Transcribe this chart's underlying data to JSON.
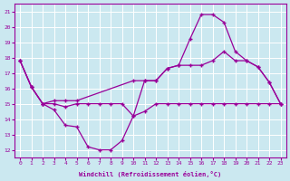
{
  "xlabel": "Windchill (Refroidissement éolien,°C)",
  "bg_color": "#cbe8f0",
  "line_color": "#990099",
  "grid_color": "#ffffff",
  "xlim": [
    -0.5,
    23.5
  ],
  "ylim": [
    11.5,
    21.5
  ],
  "yticks": [
    12,
    13,
    14,
    15,
    16,
    17,
    18,
    19,
    20,
    21
  ],
  "xticks": [
    0,
    1,
    2,
    3,
    4,
    5,
    6,
    7,
    8,
    9,
    10,
    11,
    12,
    13,
    14,
    15,
    16,
    17,
    18,
    19,
    20,
    21,
    22,
    23
  ],
  "line1_x": [
    0,
    1,
    2,
    3,
    4,
    5,
    6,
    7,
    8,
    9,
    10,
    11,
    12,
    13,
    14,
    15,
    16,
    17,
    18,
    19,
    20,
    21,
    22,
    23
  ],
  "line1_y": [
    17.8,
    16.1,
    15.0,
    14.6,
    13.6,
    13.5,
    12.2,
    12.0,
    12.0,
    12.6,
    14.2,
    16.5,
    16.5,
    17.3,
    17.5,
    19.2,
    20.8,
    20.8,
    20.3,
    18.4,
    17.8,
    17.4,
    16.4,
    15.0
  ],
  "line2_x": [
    0,
    1,
    2,
    3,
    4,
    5,
    6,
    7,
    8,
    9,
    10,
    11,
    12,
    13,
    14,
    15,
    16,
    17,
    18,
    19,
    20,
    21,
    22,
    23
  ],
  "line2_y": [
    17.8,
    16.1,
    15.0,
    15.0,
    14.8,
    15.0,
    15.0,
    15.0,
    15.0,
    15.0,
    14.2,
    14.5,
    15.0,
    15.0,
    15.0,
    15.0,
    15.0,
    15.0,
    15.0,
    15.0,
    15.0,
    15.0,
    15.0,
    15.0
  ],
  "line3_x": [
    0,
    1,
    2,
    3,
    4,
    5,
    10,
    11,
    12,
    13,
    14,
    15,
    16,
    17,
    18,
    19,
    20,
    21,
    22,
    23
  ],
  "line3_y": [
    17.8,
    16.1,
    15.0,
    15.2,
    15.2,
    15.2,
    16.5,
    16.5,
    16.5,
    17.3,
    17.5,
    17.5,
    17.5,
    17.8,
    18.4,
    17.8,
    17.8,
    17.4,
    16.4,
    15.0
  ]
}
